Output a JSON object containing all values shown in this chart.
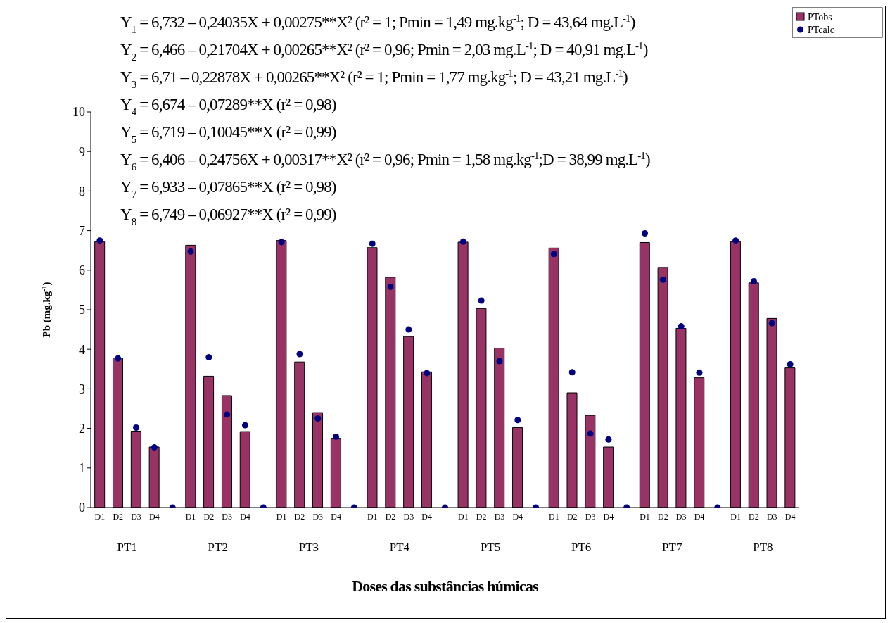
{
  "chart_data": {
    "type": "bar",
    "xlabel": "Doses das substâncias húmicas",
    "ylabel": "Pb (mg.kg$^{-1}$)",
    "categories": [
      "D1",
      "D2",
      "D3",
      "D4",
      null,
      "D1",
      "D2",
      "D3",
      "D4",
      null,
      "D1",
      "D2",
      "D3",
      "D4",
      null,
      "D1",
      "D2",
      "D3",
      "D4",
      null,
      "D1",
      "D2",
      "D3",
      "D4",
      null,
      "D1",
      "D2",
      "D3",
      "D4",
      null,
      "D1",
      "D2",
      "D3",
      "D4",
      null,
      "D1",
      "D2",
      "D3",
      "D4"
    ],
    "series": [
      {
        "name": "PTobs",
        "color": "#993366",
        "values": [
          6.72,
          3.78,
          1.93,
          1.53,
          null,
          6.63,
          3.32,
          2.83,
          1.92,
          null,
          6.75,
          3.68,
          2.4,
          1.75,
          null,
          6.57,
          5.82,
          4.32,
          3.43,
          null,
          6.71,
          5.03,
          4.03,
          2.02,
          null,
          6.56,
          2.9,
          2.33,
          1.53,
          null,
          6.7,
          6.07,
          4.53,
          3.28,
          null,
          6.72,
          5.68,
          4.78,
          3.53
        ]
      },
      {
        "name": "PTcalc",
        "type": "scatter",
        "marker": "circle",
        "color": "#000080",
        "values": [
          6.75,
          3.77,
          2.02,
          1.52,
          0,
          6.47,
          3.8,
          2.35,
          2.08,
          0,
          6.71,
          3.88,
          2.25,
          1.79,
          0,
          6.67,
          5.58,
          4.5,
          3.4,
          0,
          6.72,
          5.23,
          3.7,
          2.21,
          0,
          6.41,
          3.42,
          1.87,
          1.72,
          0,
          6.93,
          5.76,
          4.58,
          3.41,
          0,
          6.75,
          5.72,
          4.66,
          3.62
        ]
      }
    ],
    "ylim": [
      0,
      10
    ],
    "yticks": [
      0,
      1,
      2,
      3,
      4,
      5,
      6,
      7,
      8,
      9,
      10
    ],
    "grid": false,
    "legend": "top right",
    "annotations": [
      "Y$_{1}$ = 6,732 – 0,24035X + 0,00275**X² (r² = 1; Pmin = 1,49 mg.kg$^{-1}$; D = 43,64 mg.L$^{-1}$)",
      "Y$_{2}$ = 6,466 – 0,21704X + 0,00265**X² (r² = 0,96; Pmin = 2,03 mg.L$^{-1}$; D = 40,91 mg.L$^{-1}$)",
      "Y$_{3}$ = 6,71 – 0,22878X + 0,00265**X² (r² = 1; Pmin = 1,77 mg.kg$^{-1}$; D = 43,21 mg.L$^{-1}$)",
      "Y$_{4}$ = 6,674 – 0,07289**X (r² = 0,98)",
      "Y$_{5}$ = 6,719 – 0,10045**X (r² = 0,99)",
      "Y$_{6}$ = 6,406 – 0,24756X + 0,00317**X² (r² = 0,96; Pmin = 1,58 mg.kg$^{-1}$;D = 38,99 mg.L$^{-1}$)",
      "Y$_{7}$ = 6,933 – 0,07865**X (r² = 0,98)",
      "Y$_{8}$ = 6,749 – 0,06927**X (r² = 0,99)",
      "PT1",
      "PT2",
      "PT3",
      "PT4",
      "PT5",
      "PT6",
      "PT7",
      "PT8"
    ]
  }
}
